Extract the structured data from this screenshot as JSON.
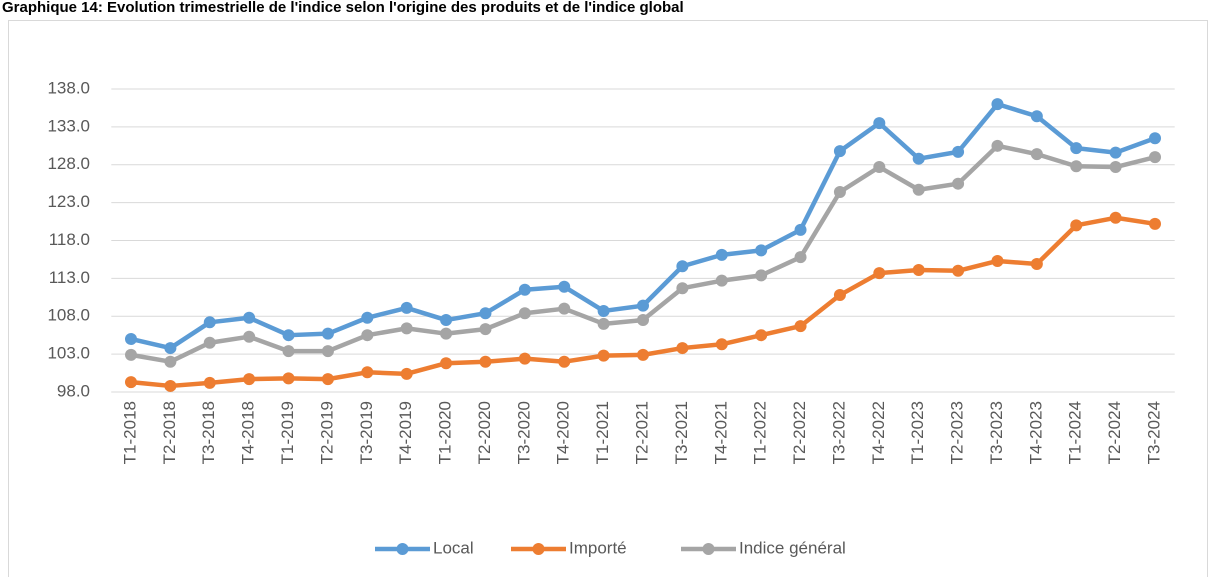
{
  "chart_data": {
    "type": "line",
    "title": "Graphique 14: Evolution trimestrielle de l'indice selon l'origine des produits et de l'indice global",
    "categories": [
      "T1-2018",
      "T2-2018",
      "T3-2018",
      "T4-2018",
      "T1-2019",
      "T2-2019",
      "T3-2019",
      "T4-2019",
      "T1-2020",
      "T2-2020",
      "T3-2020",
      "T4-2020",
      "T1-2021",
      "T2-2021",
      "T3-2021",
      "T4-2021",
      "T1-2022",
      "T2-2022",
      "T3-2022",
      "T4-2022",
      "T1-2023",
      "T2-2023",
      "T3-2023",
      "T4-2023",
      "T1-2024",
      "T2-2024",
      "T3-2024"
    ],
    "series": [
      {
        "name": "Local",
        "color": "#5b9bd5",
        "values": [
          105.0,
          103.8,
          107.2,
          107.8,
          105.5,
          105.7,
          107.8,
          109.1,
          107.5,
          108.4,
          111.5,
          111.9,
          108.7,
          109.4,
          114.6,
          116.1,
          116.7,
          119.4,
          129.8,
          133.5,
          128.8,
          129.7,
          136.0,
          134.4,
          130.2,
          129.6,
          131.5
        ]
      },
      {
        "name": "Importé",
        "color": "#ed7d31",
        "values": [
          99.3,
          98.8,
          99.2,
          99.7,
          99.8,
          99.7,
          100.6,
          100.4,
          101.8,
          102.0,
          102.4,
          102.0,
          102.8,
          102.9,
          103.8,
          104.3,
          105.5,
          106.7,
          110.8,
          113.7,
          114.1,
          114.0,
          115.3,
          114.9,
          120.0,
          121.0,
          120.2
        ]
      },
      {
        "name": "Indice général",
        "color": "#a5a5a5",
        "values": [
          102.9,
          102.0,
          104.5,
          105.3,
          103.4,
          103.4,
          105.5,
          106.4,
          105.7,
          106.3,
          108.4,
          109.0,
          107.0,
          107.5,
          111.7,
          112.7,
          113.4,
          115.8,
          124.4,
          127.7,
          124.7,
          125.5,
          130.5,
          129.4,
          127.8,
          127.7,
          129.0
        ]
      }
    ],
    "ylim": [
      98,
      138
    ],
    "yticks": [
      {
        "value": 98,
        "label": "98.0"
      },
      {
        "value": 103,
        "label": "103.0"
      },
      {
        "value": 108,
        "label": "108.0"
      },
      {
        "value": 113,
        "label": "113.0"
      },
      {
        "value": 118,
        "label": "118.0"
      },
      {
        "value": 123,
        "label": "123.0"
      },
      {
        "value": 128,
        "label": "128.0"
      },
      {
        "value": 133,
        "label": "133.0"
      },
      {
        "value": 138,
        "label": "138.0"
      }
    ],
    "grid": true,
    "legend": "bottom"
  }
}
